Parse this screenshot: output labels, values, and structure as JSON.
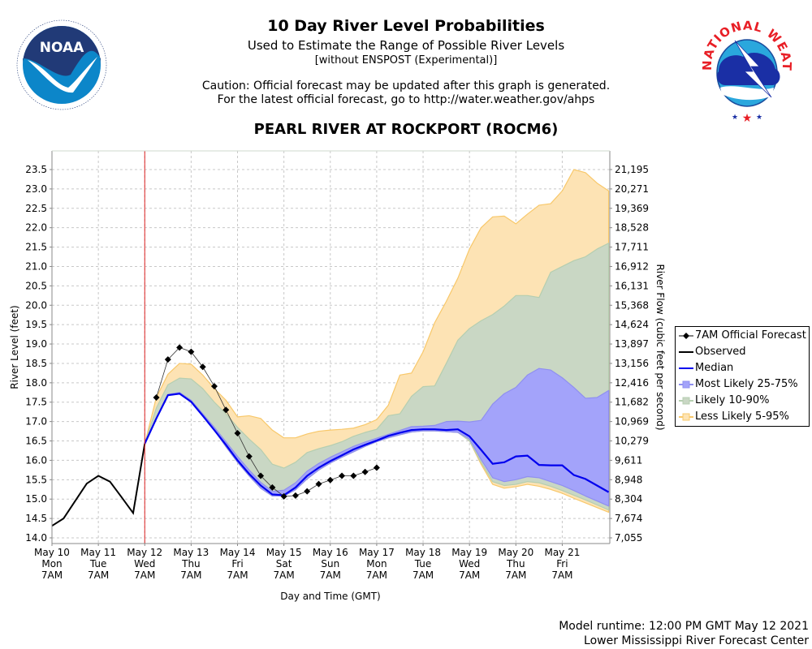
{
  "header": {
    "title": "10 Day River Level Probabilities",
    "subtitle": "Used to Estimate the Range of Possible River Levels",
    "subtitle2": "[without ENSPOST (Experimental)]",
    "caution_line1": "Caution: Official forecast may be updated after this graph is generated.",
    "caution_line2": "For the latest official forecast, go to http://water.weather.gov/ahps",
    "station": "PEARL RIVER AT ROCKPORT (ROCM6)"
  },
  "logos": {
    "left": {
      "name": "NOAA",
      "ring_text": "NATIONAL OCEANIC AND ATMOSPHERIC ADMINISTRATION",
      "bottom_text": "U.S. DEPARTMENT OF COMMERCE"
    },
    "right": {
      "name": "NATIONAL WEATHER SERVICE"
    }
  },
  "footer": {
    "runtime": "Model runtime: 12:00 PM GMT May 12 2021",
    "center": "Lower Mississippi River Forecast Center"
  },
  "legend": {
    "items": [
      {
        "label": "7AM Official Forecast",
        "kind": "forecast"
      },
      {
        "label": "Observed",
        "kind": "observed"
      },
      {
        "label": "Median",
        "kind": "median"
      },
      {
        "label": "Most Likely 25-75%",
        "kind": "band25"
      },
      {
        "label": "Likely 10-90%",
        "kind": "band10"
      },
      {
        "label": "Less Likely 5-95%",
        "kind": "band5"
      }
    ]
  },
  "colors": {
    "observed": "#000000",
    "median": "#0000ee",
    "forecast": "#000000",
    "band25": "#a3a3fa",
    "band25_edge": "#8f8ff0",
    "band10": "#c9d7c4",
    "band10_edge": "#b5ceb0",
    "band5": "#fde3b4",
    "band5_edge": "#f8c86a",
    "now_line": "#dd2222",
    "grid": "#c8c8c8"
  },
  "chart_data": {
    "type": "area",
    "title": "10 Day River Level Probabilities",
    "xlabel": "Day and Time (GMT)",
    "ylabel": "River Level (feet)",
    "y2label": "River Flow (cubic feet per second)",
    "ylim": [
      13.86,
      24.0
    ],
    "x_unit": "days since May 10 7AM",
    "xlim": [
      0,
      12.03
    ],
    "grid": true,
    "legend_position": "right",
    "now_marker_day": 2.0,
    "x_ticks": [
      {
        "day": 0,
        "line1": "May 10",
        "line2": "Mon",
        "line3": "7AM"
      },
      {
        "day": 1,
        "line1": "May 11",
        "line2": "Tue",
        "line3": "7AM"
      },
      {
        "day": 2,
        "line1": "May 12",
        "line2": "Wed",
        "line3": "7AM"
      },
      {
        "day": 3,
        "line1": "May 13",
        "line2": "Thu",
        "line3": "7AM"
      },
      {
        "day": 4,
        "line1": "May 14",
        "line2": "Fri",
        "line3": "7AM"
      },
      {
        "day": 5,
        "line1": "May 15",
        "line2": "Sat",
        "line3": "7AM"
      },
      {
        "day": 6,
        "line1": "May 16",
        "line2": "Sun",
        "line3": "7AM"
      },
      {
        "day": 7,
        "line1": "May 17",
        "line2": "Mon",
        "line3": "7AM"
      },
      {
        "day": 8,
        "line1": "May 18",
        "line2": "Tue",
        "line3": "7AM"
      },
      {
        "day": 9,
        "line1": "May 19",
        "line2": "Wed",
        "line3": "7AM"
      },
      {
        "day": 10,
        "line1": "May 20",
        "line2": "Thu",
        "line3": "7AM"
      },
      {
        "day": 11,
        "line1": "May 21",
        "line2": "Fri",
        "line3": "7AM"
      }
    ],
    "y_ticks": [
      {
        "stage": 14.0,
        "flow": "7,055"
      },
      {
        "stage": 14.5,
        "flow": "7,674"
      },
      {
        "stage": 15.0,
        "flow": "8,304"
      },
      {
        "stage": 15.5,
        "flow": "8,948"
      },
      {
        "stage": 16.0,
        "flow": "9,611"
      },
      {
        "stage": 16.5,
        "flow": "10,279"
      },
      {
        "stage": 17.0,
        "flow": "10,969"
      },
      {
        "stage": 17.5,
        "flow": "11,682"
      },
      {
        "stage": 18.0,
        "flow": "12,416"
      },
      {
        "stage": 18.5,
        "flow": "13,156"
      },
      {
        "stage": 19.0,
        "flow": "13,897"
      },
      {
        "stage": 19.5,
        "flow": "14,624"
      },
      {
        "stage": 20.0,
        "flow": "15,368"
      },
      {
        "stage": 20.5,
        "flow": "16,131"
      },
      {
        "stage": 21.0,
        "flow": "16,912"
      },
      {
        "stage": 21.5,
        "flow": "17,711"
      },
      {
        "stage": 22.0,
        "flow": "18,528"
      },
      {
        "stage": 22.5,
        "flow": "19,369"
      },
      {
        "stage": 23.0,
        "flow": "20,271"
      },
      {
        "stage": 23.5,
        "flow": "21,195"
      }
    ],
    "observed": {
      "x": [
        0,
        0.25,
        0.5,
        0.75,
        1.0,
        1.25,
        1.5,
        1.75,
        2.0
      ],
      "y": [
        14.31,
        14.5,
        14.95,
        15.4,
        15.6,
        15.45,
        15.05,
        14.64,
        16.43
      ]
    },
    "forecast_7am": {
      "x": [
        2.25,
        2.5,
        2.75,
        3.0,
        3.25,
        3.5,
        3.75,
        4.0,
        4.25,
        4.5,
        4.75,
        5.0,
        5.25,
        5.5,
        5.75,
        6.0,
        6.25,
        6.5,
        6.75,
        7.0
      ],
      "y": [
        17.62,
        18.6,
        18.91,
        18.8,
        18.41,
        17.91,
        17.3,
        16.7,
        16.1,
        15.6,
        15.3,
        15.07,
        15.09,
        15.2,
        15.39,
        15.49,
        15.6,
        15.6,
        15.7,
        15.81
      ]
    },
    "median": {
      "x": [
        2.0,
        2.25,
        2.5,
        2.75,
        3.0,
        3.25,
        3.5,
        3.75,
        4.0,
        4.25,
        4.5,
        4.75,
        5.0,
        5.25,
        5.5,
        5.75,
        6.0,
        6.25,
        6.5,
        6.75,
        7.0,
        7.25,
        7.5,
        7.75,
        8.0,
        8.25,
        8.5,
        8.75,
        9.0,
        9.25,
        9.5,
        9.75,
        10.0,
        10.25,
        10.5,
        10.75,
        11.0,
        11.25,
        11.5,
        11.75,
        12.0
      ],
      "y": [
        16.43,
        17.08,
        17.68,
        17.72,
        17.51,
        17.15,
        16.78,
        16.4,
        16.0,
        15.65,
        15.35,
        15.12,
        15.1,
        15.3,
        15.6,
        15.81,
        15.98,
        16.13,
        16.28,
        16.4,
        16.51,
        16.63,
        16.71,
        16.78,
        16.8,
        16.8,
        16.78,
        16.8,
        16.62,
        16.27,
        15.91,
        15.95,
        16.1,
        16.12,
        15.88,
        15.87,
        15.87,
        15.62,
        15.52,
        15.35,
        15.18
      ]
    },
    "band_25_75": {
      "x": [
        2.0,
        2.25,
        2.5,
        2.75,
        3.0,
        3.25,
        3.5,
        3.75,
        4.0,
        4.25,
        4.5,
        4.75,
        5.0,
        5.25,
        5.5,
        5.75,
        6.0,
        6.25,
        6.5,
        6.75,
        7.0,
        7.25,
        7.5,
        7.75,
        8.0,
        8.25,
        8.5,
        8.75,
        9.0,
        9.25,
        9.5,
        9.75,
        10.0,
        10.25,
        10.5,
        10.75,
        11.0,
        11.25,
        11.5,
        11.75,
        12.0
      ],
      "low": [
        16.43,
        17.08,
        17.68,
        17.72,
        17.51,
        17.15,
        16.78,
        16.35,
        15.95,
        15.6,
        15.28,
        15.08,
        15.08,
        15.24,
        15.52,
        15.75,
        15.93,
        16.08,
        16.22,
        16.36,
        16.48,
        16.58,
        16.66,
        16.73,
        16.76,
        16.76,
        16.74,
        16.72,
        16.55,
        16.02,
        15.55,
        15.45,
        15.5,
        15.58,
        15.55,
        15.45,
        15.35,
        15.22,
        15.08,
        14.95,
        14.82
      ],
      "high": [
        16.43,
        17.08,
        17.7,
        17.75,
        17.55,
        17.2,
        16.85,
        16.48,
        16.1,
        15.75,
        15.43,
        15.2,
        15.23,
        15.42,
        15.72,
        15.92,
        16.08,
        16.22,
        16.36,
        16.47,
        16.57,
        16.67,
        16.77,
        16.87,
        16.88,
        16.9,
        17.0,
        17.01,
        16.99,
        17.03,
        17.45,
        17.72,
        17.88,
        18.2,
        18.37,
        18.33,
        18.13,
        17.88,
        17.6,
        17.62,
        17.8
      ]
    },
    "band_10_90": {
      "x": [
        2.0,
        2.25,
        2.5,
        2.75,
        3.0,
        3.25,
        3.5,
        3.75,
        4.0,
        4.25,
        4.5,
        4.75,
        5.0,
        5.25,
        5.5,
        5.75,
        6.0,
        6.25,
        6.5,
        6.75,
        7.0,
        7.25,
        7.5,
        7.75,
        8.0,
        8.25,
        8.5,
        8.75,
        9.0,
        9.25,
        9.5,
        9.75,
        10.0,
        10.25,
        10.5,
        10.75,
        11.0,
        11.25,
        11.5,
        11.75,
        12.0
      ],
      "low": [
        16.43,
        17.08,
        17.68,
        17.72,
        17.51,
        17.15,
        16.78,
        16.35,
        15.95,
        15.6,
        15.28,
        15.08,
        15.08,
        15.24,
        15.52,
        15.75,
        15.93,
        16.08,
        16.22,
        16.36,
        16.48,
        16.58,
        16.66,
        16.73,
        16.76,
        16.76,
        16.74,
        16.72,
        16.5,
        15.95,
        15.45,
        15.35,
        15.38,
        15.45,
        15.42,
        15.33,
        15.22,
        15.1,
        14.98,
        14.85,
        14.72
      ],
      "high": [
        16.43,
        17.35,
        17.95,
        18.12,
        18.1,
        17.85,
        17.5,
        17.2,
        16.85,
        16.55,
        16.28,
        15.9,
        15.8,
        15.95,
        16.2,
        16.3,
        16.38,
        16.48,
        16.62,
        16.72,
        16.8,
        17.15,
        17.2,
        17.65,
        17.9,
        17.92,
        18.5,
        19.1,
        19.4,
        19.6,
        19.76,
        19.98,
        20.25,
        20.25,
        20.2,
        20.85,
        21.0,
        21.15,
        21.25,
        21.45,
        21.6
      ]
    },
    "band_5_95": {
      "x": [
        2.0,
        2.25,
        2.5,
        2.75,
        3.0,
        3.25,
        3.5,
        3.75,
        4.0,
        4.25,
        4.5,
        4.75,
        5.0,
        5.25,
        5.5,
        5.75,
        6.0,
        6.25,
        6.5,
        6.75,
        7.0,
        7.25,
        7.5,
        7.75,
        8.0,
        8.25,
        8.5,
        8.75,
        9.0,
        9.25,
        9.5,
        9.75,
        10.0,
        10.25,
        10.5,
        10.75,
        11.0,
        11.25,
        11.5,
        11.75,
        12.0
      ],
      "low": [
        16.43,
        17.08,
        17.68,
        17.72,
        17.51,
        17.15,
        16.78,
        16.35,
        15.95,
        15.6,
        15.28,
        15.08,
        15.08,
        15.24,
        15.52,
        15.75,
        15.93,
        16.08,
        16.22,
        16.36,
        16.48,
        16.58,
        16.66,
        16.73,
        16.76,
        16.76,
        16.74,
        16.72,
        16.5,
        15.9,
        15.38,
        15.28,
        15.32,
        15.38,
        15.33,
        15.25,
        15.15,
        15.02,
        14.9,
        14.78,
        14.66
      ],
      "high": [
        16.43,
        17.62,
        18.22,
        18.5,
        18.48,
        18.2,
        17.85,
        17.55,
        17.12,
        17.15,
        17.08,
        16.78,
        16.58,
        16.58,
        16.68,
        16.75,
        16.78,
        16.8,
        16.83,
        16.92,
        17.05,
        17.42,
        18.2,
        18.25,
        18.8,
        19.55,
        20.1,
        20.7,
        21.45,
        22.0,
        22.28,
        22.3,
        22.1,
        22.35,
        22.58,
        22.62,
        22.95,
        23.5,
        23.42,
        23.15,
        22.95
      ]
    }
  }
}
